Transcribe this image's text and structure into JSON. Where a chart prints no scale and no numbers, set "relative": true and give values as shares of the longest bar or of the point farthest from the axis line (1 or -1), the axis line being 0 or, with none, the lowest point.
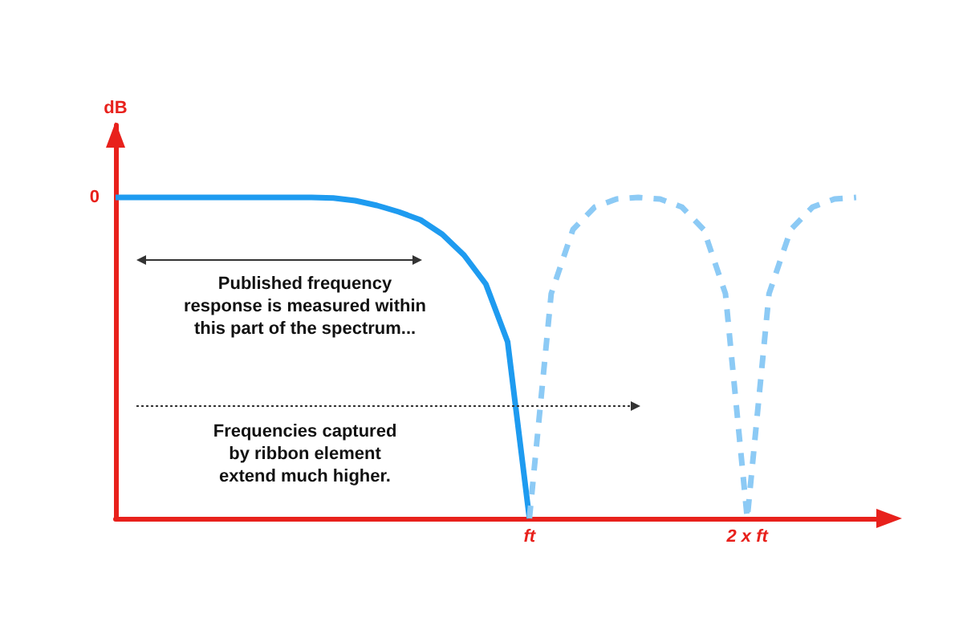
{
  "chart_data": {
    "type": "line",
    "relative": true,
    "ylabel": "dB",
    "categories": [
      null,
      null,
      null,
      null,
      null,
      null,
      null,
      null,
      null,
      null,
      null,
      null,
      null,
      null,
      null,
      null,
      null,
      null,
      null,
      "ft",
      null,
      null,
      null,
      null,
      null,
      null,
      null,
      null,
      null,
      "2 x ft",
      null,
      null,
      null,
      null,
      null,
      null
    ],
    "series": [
      {
        "color": "#1e9bf0",
        "line_style": "solid",
        "values": [
          1,
          1,
          1,
          1,
          1,
          1,
          1,
          1,
          1,
          1,
          0.998,
          0.99,
          0.975,
          0.955,
          0.93,
          0.885,
          0.82,
          0.73,
          0.55,
          0,
          null,
          null,
          null,
          null,
          null,
          null,
          null,
          null,
          null,
          null,
          null,
          null,
          null,
          null,
          null,
          null
        ]
      },
      {
        "color": "#8ccaf5",
        "line_style": "dashed",
        "values": [
          null,
          null,
          null,
          null,
          null,
          null,
          null,
          null,
          null,
          null,
          null,
          null,
          null,
          null,
          null,
          null,
          null,
          null,
          null,
          0,
          0.7,
          0.9,
          0.97,
          0.995,
          1,
          0.995,
          0.97,
          0.9,
          0.7,
          0,
          0.7,
          0.9,
          0.97,
          0.995,
          1,
          null
        ]
      }
    ],
    "annotations": [
      "0",
      "Published frequency\nresponse is measured within\nthis part of the spectrum...",
      "Frequencies captured\nby ribbon element\nextend much higher."
    ],
    "grid": false,
    "marker": "none"
  }
}
